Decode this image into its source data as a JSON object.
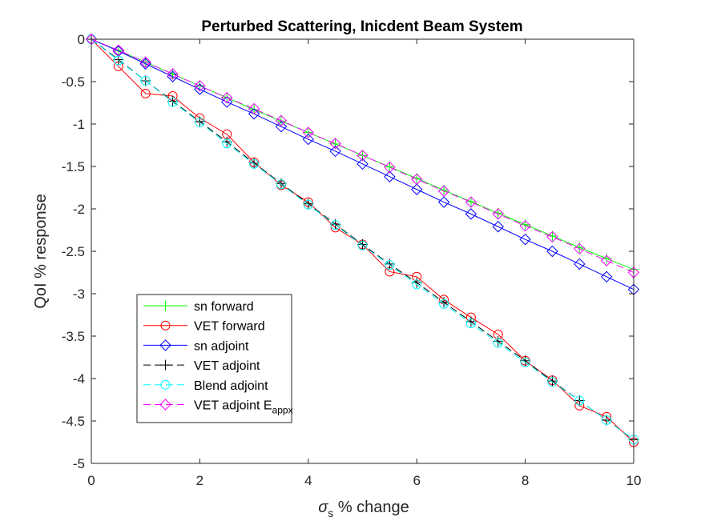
{
  "chart_data": {
    "type": "line",
    "title": "Perturbed Scattering, Inicdent Beam System",
    "xlabel": {
      "symbol": "σ",
      "subscript": "s",
      "text": " % change"
    },
    "ylabel": "QoI % response",
    "xlim": [
      0,
      10
    ],
    "ylim": [
      -5,
      0
    ],
    "xticks": [
      0,
      2,
      4,
      6,
      8,
      10
    ],
    "xtick_labels": [
      "0",
      "2",
      "4",
      "6",
      "8",
      "10"
    ],
    "yticks": [
      0,
      -0.5,
      -1,
      -1.5,
      -2,
      -2.5,
      -3,
      -3.5,
      -4,
      -4.5,
      -5
    ],
    "ytick_labels": [
      "0",
      "-0.5",
      "-1",
      "-1.5",
      "-2",
      "-2.5",
      "-3",
      "-3.5",
      "-4",
      "-4.5",
      "-5"
    ],
    "grid": false,
    "legend_position": "lower-left",
    "x": [
      0,
      0.5,
      1,
      1.5,
      2,
      2.5,
      3,
      3.5,
      4,
      4.5,
      5,
      5.5,
      6,
      6.5,
      7,
      7.5,
      8,
      8.5,
      9,
      9.5,
      10
    ],
    "series": [
      {
        "name": "sn forward",
        "color": "#00ff00",
        "dash": "solid",
        "marker": "plus",
        "values": [
          0,
          -0.135,
          -0.27,
          -0.41,
          -0.55,
          -0.69,
          -0.83,
          -0.965,
          -1.1,
          -1.235,
          -1.37,
          -1.505,
          -1.64,
          -1.78,
          -1.915,
          -2.05,
          -2.185,
          -2.32,
          -2.455,
          -2.585,
          -2.715
        ]
      },
      {
        "name": "VET forward",
        "color": "#ff0000",
        "dash": "solid",
        "marker": "circle",
        "values": [
          0,
          -0.32,
          -0.64,
          -0.67,
          -0.93,
          -1.12,
          -1.45,
          -1.72,
          -1.92,
          -2.22,
          -2.42,
          -2.74,
          -2.8,
          -3.07,
          -3.28,
          -3.48,
          -3.79,
          -4.02,
          -4.32,
          -4.45,
          -4.75
        ]
      },
      {
        "name": "sn adjoint",
        "color": "#0000ff",
        "dash": "solid",
        "marker": "diamond",
        "values": [
          0,
          -0.14,
          -0.29,
          -0.44,
          -0.59,
          -0.74,
          -0.88,
          -1.03,
          -1.18,
          -1.32,
          -1.47,
          -1.62,
          -1.77,
          -1.92,
          -2.06,
          -2.21,
          -2.36,
          -2.5,
          -2.65,
          -2.8,
          -2.95
        ]
      },
      {
        "name": "VET adjoint",
        "color": "#000000",
        "dash": "dashed",
        "marker": "plus",
        "values": [
          0,
          -0.24,
          -0.49,
          -0.73,
          -0.97,
          -1.21,
          -1.46,
          -1.7,
          -1.94,
          -2.18,
          -2.42,
          -2.65,
          -2.87,
          -3.1,
          -3.33,
          -3.56,
          -3.79,
          -4.03,
          -4.26,
          -4.49,
          -4.72
        ]
      },
      {
        "name": "Blend adjoint",
        "color": "#00ffff",
        "dash": "dashed",
        "marker": "circle",
        "values": [
          0,
          -0.25,
          -0.49,
          -0.74,
          -0.98,
          -1.23,
          -1.47,
          -1.71,
          -1.95,
          -2.19,
          -2.43,
          -2.66,
          -2.89,
          -3.12,
          -3.35,
          -3.58,
          -3.81,
          -4.04,
          -4.26,
          -4.49,
          -4.72
        ]
      },
      {
        "name": "VET adjoint E",
        "name_subscript": "appx",
        "color": "#ff00ff",
        "dash": "dashed",
        "marker": "diamond",
        "values": [
          0,
          -0.13,
          -0.27,
          -0.41,
          -0.55,
          -0.69,
          -0.82,
          -0.96,
          -1.1,
          -1.23,
          -1.37,
          -1.51,
          -1.65,
          -1.79,
          -1.92,
          -2.06,
          -2.2,
          -2.33,
          -2.47,
          -2.61,
          -2.75
        ]
      }
    ]
  }
}
